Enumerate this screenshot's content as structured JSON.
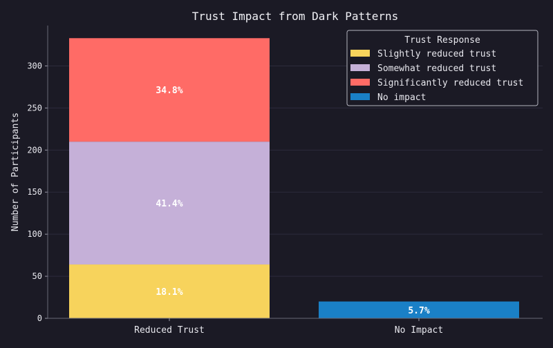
{
  "chart_data": {
    "type": "bar",
    "stacked": true,
    "title": "Trust Impact from Dark Patterns",
    "xlabel": "",
    "ylabel": "Number of Participants",
    "categories": [
      "Reduced Trust",
      "No Impact"
    ],
    "ylim": [
      0,
      348
    ],
    "yticks": [
      0,
      50,
      100,
      150,
      200,
      250,
      300
    ],
    "grid": true,
    "legend": {
      "title": "Trust Response",
      "placement": "top-right"
    },
    "series": [
      {
        "name": "Slightly reduced trust",
        "color": "#f7d35c",
        "values": [
          64,
          0
        ],
        "labels": [
          "18.1%",
          ""
        ]
      },
      {
        "name": "Somewhat reduced trust",
        "color": "#c5b0d8",
        "values": [
          146,
          0
        ],
        "labels": [
          "41.4%",
          ""
        ]
      },
      {
        "name": "Significantly reduced trust",
        "color": "#ff6b66",
        "values": [
          123,
          0
        ],
        "labels": [
          "34.8%",
          ""
        ]
      },
      {
        "name": "No impact",
        "color": "#1a80c6",
        "values": [
          0,
          20
        ],
        "labels": [
          "",
          "5.7%"
        ]
      }
    ]
  }
}
